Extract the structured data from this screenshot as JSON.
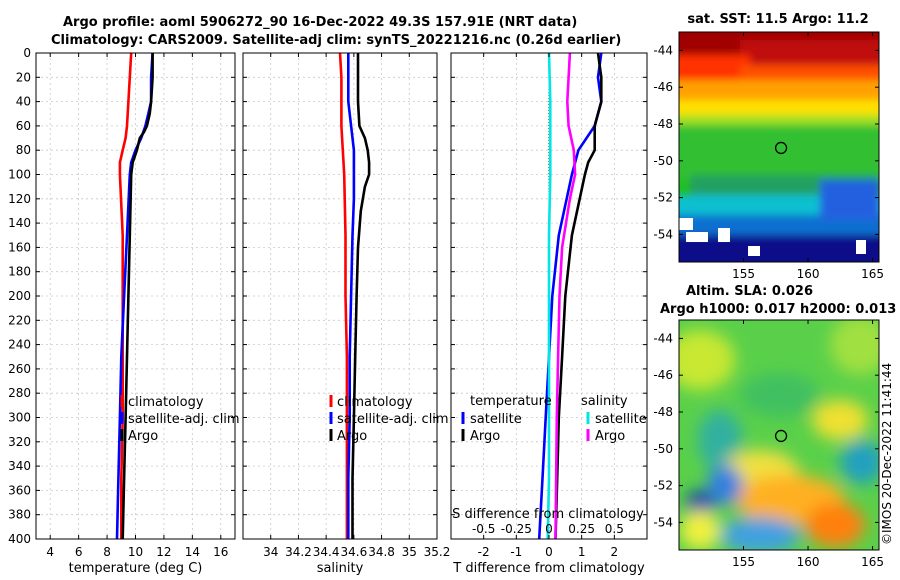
{
  "header": {
    "line1": "Argo profile: aoml 5906272_90 16-Dec-2022 49.3S 157.91E (NRT data)",
    "line2": "Climatology: CARS2009. Satellite-adj clim: synTS_20221216.nc (0.26d earlier)"
  },
  "colors": {
    "red": "#ff0000",
    "blue": "#0000ff",
    "black": "#000000",
    "cyan": "#00e5e5",
    "magenta": "#ff00ff",
    "grid": "#c8c8c8"
  },
  "chart_data": [
    {
      "type": "line",
      "panel": "temperature",
      "xlabel": "temperature (deg C)",
      "xlim": [
        3,
        17
      ],
      "xticks": [
        4,
        6,
        8,
        10,
        12,
        14,
        16
      ],
      "xtick_labels": [
        "4",
        "6",
        "8",
        "10",
        "12",
        "14",
        "16"
      ],
      "ylim": [
        0,
        400
      ],
      "yticks": [
        0,
        20,
        40,
        60,
        80,
        100,
        120,
        140,
        160,
        180,
        200,
        220,
        240,
        260,
        280,
        300,
        320,
        340,
        360,
        380,
        400
      ],
      "ytick_labels": [
        "0",
        "20",
        "40",
        "60",
        "80",
        "100",
        "120",
        "140",
        "160",
        "180",
        "200",
        "220",
        "240",
        "260",
        "280",
        "300",
        "320",
        "340",
        "360",
        "380",
        "400"
      ],
      "grid": true,
      "legend": {
        "position": "lower-right",
        "labels": [
          "climatology",
          "satellite-adj. clim",
          "Argo"
        ]
      },
      "series": [
        {
          "name": "climatology",
          "color": "red",
          "depth": [
            0,
            20,
            40,
            60,
            70,
            80,
            90,
            100,
            150,
            200,
            250,
            300,
            350,
            400
          ],
          "values": [
            9.7,
            9.6,
            9.5,
            9.4,
            9.3,
            9.1,
            8.9,
            8.9,
            9.1,
            9.1,
            9.1,
            9.1,
            9.0,
            9.0
          ]
        },
        {
          "name": "satellite-adj. clim",
          "color": "blue",
          "depth": [
            0,
            20,
            40,
            50,
            60,
            70,
            80,
            90,
            100,
            150,
            200,
            250,
            300,
            350,
            400
          ],
          "values": [
            11.2,
            11.1,
            11.1,
            10.9,
            10.7,
            10.4,
            10.0,
            9.7,
            9.6,
            9.4,
            9.2,
            9.0,
            8.9,
            8.8,
            8.7
          ]
        },
        {
          "name": "Argo",
          "color": "black",
          "depth": [
            0,
            20,
            40,
            50,
            60,
            65,
            70,
            80,
            90,
            100,
            150,
            200,
            250,
            300,
            350,
            400
          ],
          "values": [
            11.2,
            11.2,
            11.1,
            11.0,
            10.8,
            10.6,
            10.3,
            10.1,
            9.8,
            9.7,
            9.6,
            9.5,
            9.4,
            9.3,
            9.2,
            9.1
          ]
        }
      ]
    },
    {
      "type": "line",
      "panel": "salinity",
      "xlabel": "salinity",
      "xlim": [
        33.8,
        35.2
      ],
      "xticks": [
        34,
        34.2,
        34.4,
        34.6,
        34.8,
        35,
        35.2
      ],
      "xtick_labels": [
        "34",
        "34.2",
        "34.4",
        "34.6",
        "34.8",
        "35",
        "35.2"
      ],
      "ylim": [
        0,
        400
      ],
      "grid": true,
      "legend": {
        "position": "lower-right",
        "labels": [
          "climatology",
          "satellite-adj. clim",
          "Argo"
        ]
      },
      "series": [
        {
          "name": "climatology",
          "color": "red",
          "depth": [
            0,
            20,
            40,
            60,
            80,
            100,
            150,
            200,
            250,
            300,
            350,
            400
          ],
          "values": [
            34.5,
            34.51,
            34.51,
            34.51,
            34.52,
            34.53,
            34.54,
            34.54,
            34.55,
            34.55,
            34.55,
            34.55
          ]
        },
        {
          "name": "satellite-adj. clim",
          "color": "blue",
          "depth": [
            0,
            20,
            40,
            60,
            80,
            100,
            120,
            150,
            200,
            250,
            300,
            350,
            400
          ],
          "values": [
            34.56,
            34.56,
            34.56,
            34.58,
            34.6,
            34.6,
            34.6,
            34.59,
            34.58,
            34.57,
            34.57,
            34.56,
            34.56
          ]
        },
        {
          "name": "Argo",
          "color": "black",
          "depth": [
            0,
            20,
            40,
            60,
            70,
            80,
            90,
            100,
            110,
            130,
            160,
            200,
            250,
            300,
            350,
            400
          ],
          "values": [
            34.63,
            34.63,
            34.63,
            34.64,
            34.68,
            34.7,
            34.71,
            34.71,
            34.68,
            34.65,
            34.63,
            34.62,
            34.61,
            34.6,
            34.59,
            34.59
          ]
        }
      ]
    },
    {
      "type": "line",
      "panel": "differences",
      "xlabel": "T difference from climatology",
      "xlim": [
        -3,
        3
      ],
      "xticks": [
        -2,
        -1,
        0,
        1,
        2
      ],
      "xtick_labels": [
        "-2",
        "-1",
        "0",
        "1",
        "2"
      ],
      "top_axis_label": "S difference from climatology",
      "top_ticks": [
        -0.5,
        -0.25,
        0,
        0.25,
        0.5
      ],
      "top_tick_labels": [
        "-0.5",
        "-0.25",
        "0",
        "0.25",
        "0.5"
      ],
      "top_scale": 4,
      "ylim": [
        0,
        400
      ],
      "grid": true,
      "legend": {
        "position": "lower",
        "temperature_header": "temperature",
        "salinity_header": "salinity",
        "labels": [
          "satellite",
          "Argo",
          "satellite",
          "Argo"
        ]
      },
      "series": [
        {
          "name": "T satellite",
          "color": "blue",
          "depth": [
            0,
            20,
            40,
            60,
            80,
            100,
            150,
            200,
            250,
            300,
            350,
            400
          ],
          "values": [
            1.6,
            1.5,
            1.6,
            1.4,
            0.9,
            0.7,
            0.3,
            0.1,
            0.0,
            -0.1,
            -0.2,
            -0.3
          ]
        },
        {
          "name": "T Argo",
          "color": "black",
          "depth": [
            0,
            20,
            40,
            60,
            80,
            90,
            100,
            150,
            200,
            250,
            300,
            350,
            400
          ],
          "values": [
            1.5,
            1.6,
            1.6,
            1.4,
            1.4,
            1.2,
            1.1,
            0.7,
            0.5,
            0.4,
            0.3,
            0.25,
            0.2
          ]
        },
        {
          "name": "S satellite",
          "color": "cyan",
          "depth": [
            0,
            40,
            80,
            100,
            150,
            200,
            250,
            300,
            350,
            400
          ],
          "values": [
            0.0,
            0.01,
            0.01,
            0.01,
            0.0,
            0.0,
            0.0,
            0.0,
            0.0,
            -0.01
          ]
        },
        {
          "name": "S Argo",
          "color": "magenta",
          "depth": [
            0,
            20,
            40,
            60,
            80,
            100,
            120,
            160,
            200,
            250,
            300,
            400
          ],
          "values": [
            0.16,
            0.15,
            0.14,
            0.15,
            0.19,
            0.2,
            0.16,
            0.1,
            0.08,
            0.07,
            0.06,
            0.05
          ]
        }
      ]
    },
    {
      "type": "heatmap",
      "panel": "sst_map",
      "title": "sat. SST: 11.5 Argo: 11.2",
      "xlim": [
        150,
        165.5
      ],
      "ylim": [
        -55.5,
        -43
      ],
      "xticks": [
        155,
        160,
        165
      ],
      "xtick_labels": [
        "155",
        "160",
        "165"
      ],
      "yticks": [
        -44,
        -46,
        -48,
        -50,
        -52,
        -54
      ],
      "ytick_labels": [
        "-44",
        "-46",
        "-48",
        "-50",
        "-52",
        "-54"
      ],
      "marker": {
        "lon": 157.91,
        "lat": -49.3
      }
    },
    {
      "type": "heatmap",
      "panel": "sla_map",
      "title_line1": "Altim. SLA: 0.026",
      "title_line2": "Argo h1000: 0.017 h2000: 0.013",
      "xlim": [
        150,
        165.5
      ],
      "ylim": [
        -55.5,
        -43
      ],
      "xticks": [
        155,
        160,
        165
      ],
      "xtick_labels": [
        "155",
        "160",
        "165"
      ],
      "yticks": [
        -44,
        -46,
        -48,
        -50,
        -52,
        -54
      ],
      "ytick_labels": [
        "-44",
        "-46",
        "-48",
        "-50",
        "-52",
        "-54"
      ],
      "marker": {
        "lon": 157.91,
        "lat": -49.3
      }
    }
  ],
  "footer": {
    "stamp": "©IMOS 20-Dec-2022 11:41:44"
  }
}
